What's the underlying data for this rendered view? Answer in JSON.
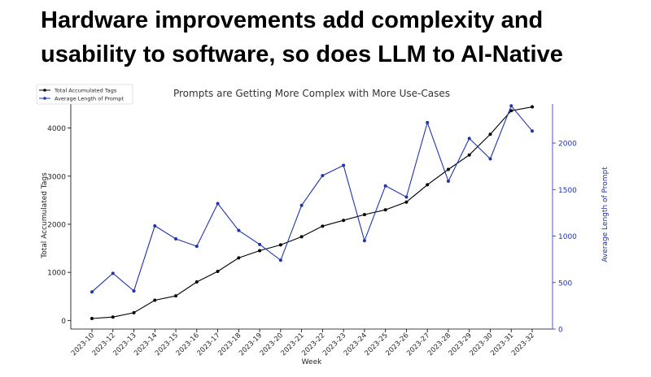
{
  "slide": {
    "headline_line1": "Hardware improvements add complexity and",
    "headline_line2": "usability to software, so does LLM to AI-Native"
  },
  "chart_data": {
    "type": "line",
    "title": "Prompts are Getting More Complex with More Use-Cases",
    "xlabel": "Week",
    "ylabel_left": "Total Accumulated Tags",
    "ylabel_right": "Average Length of Prompt",
    "categories": [
      "2023-10",
      "2023-12",
      "2023-13",
      "2023-14",
      "2023-15",
      "2023-16",
      "2023-17",
      "2023-18",
      "2023-19",
      "2023-20",
      "2023-21",
      "2023-22",
      "2023-23",
      "2023-24",
      "2023-25",
      "2023-26",
      "2023-27",
      "2023-28",
      "2023-29",
      "2023-30",
      "2023-31",
      "2023-32"
    ],
    "yticks_left": [
      0,
      1000,
      2000,
      3000,
      4000
    ],
    "yticks_right": [
      0,
      500,
      1000,
      1500,
      2000
    ],
    "ylim_left": [
      -180,
      4500
    ],
    "ylim_right": [
      0,
      2420
    ],
    "legend_position": "top-left",
    "grid": false,
    "colors": {
      "tags": "#000000",
      "length": "#1f33b0"
    },
    "series": [
      {
        "name": "Total Accumulated Tags",
        "axis": "left",
        "values": [
          40,
          70,
          160,
          420,
          510,
          800,
          1020,
          1300,
          1450,
          1570,
          1740,
          1960,
          2080,
          2200,
          2300,
          2460,
          2820,
          3140,
          3440,
          3870,
          4360,
          4440
        ]
      },
      {
        "name": "Average Length of Prompt",
        "axis": "right",
        "values": [
          400,
          600,
          410,
          1110,
          970,
          890,
          1350,
          1060,
          910,
          740,
          1330,
          1650,
          1760,
          950,
          1540,
          1420,
          2220,
          1590,
          2050,
          1830,
          2400,
          2130
        ]
      }
    ]
  }
}
